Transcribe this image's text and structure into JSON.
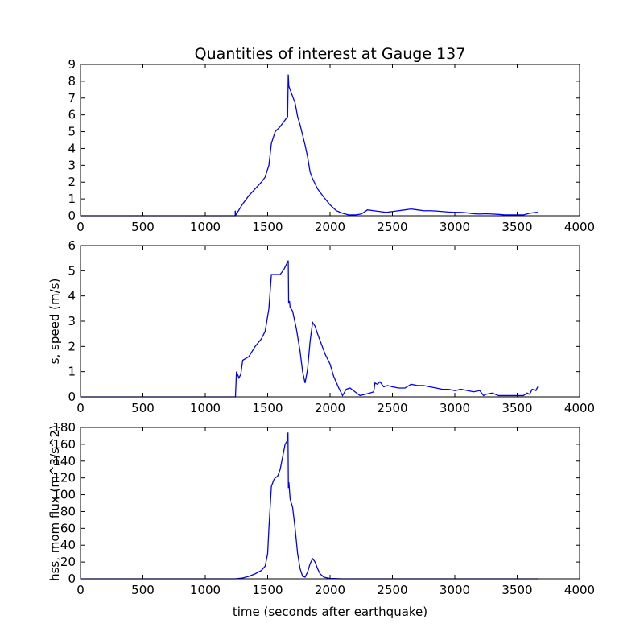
{
  "title": "Quantities of interest at Gauge 137",
  "xlabel": "time (seconds after earthquake)",
  "line_color": "#0000ff",
  "chart_data": [
    {
      "type": "line",
      "title": "Quantities of interest at Gauge 137",
      "ylabel": "",
      "xlabel": "",
      "xlim": [
        0,
        4000
      ],
      "ylim": [
        0,
        9
      ],
      "xticks": [
        0,
        500,
        1000,
        1500,
        2000,
        2500,
        3000,
        3500,
        4000
      ],
      "yticks": [
        0,
        1,
        2,
        3,
        4,
        5,
        6,
        7,
        8,
        9
      ],
      "series": [
        {
          "x": [
            0,
            1240,
            1240,
            1245,
            1300,
            1350,
            1400,
            1450,
            1480,
            1510,
            1530,
            1560,
            1600,
            1630,
            1660,
            1665,
            1670,
            1680,
            1700,
            1720,
            1740,
            1760,
            1780,
            1800,
            1820,
            1840,
            1860,
            1900,
            1950,
            2000,
            2050,
            2100,
            2150,
            2200,
            2250,
            2300,
            2350,
            2400,
            2450,
            2500,
            2550,
            2600,
            2650,
            2700,
            2750,
            2800,
            2850,
            2900,
            2950,
            3000,
            3050,
            3100,
            3150,
            3200,
            3250,
            3300,
            3350,
            3400,
            3450,
            3500,
            3550,
            3600,
            3650,
            3665
          ],
          "y": [
            0,
            0,
            0.3,
            0.05,
            0.7,
            1.2,
            1.6,
            2.0,
            2.3,
            3.0,
            4.3,
            5.0,
            5.3,
            5.6,
            5.9,
            8.4,
            7.7,
            7.5,
            7.1,
            6.7,
            5.9,
            5.4,
            4.8,
            4.2,
            3.5,
            2.6,
            2.2,
            1.6,
            1.1,
            0.65,
            0.3,
            0.15,
            0.05,
            0.05,
            0.1,
            0.35,
            0.3,
            0.25,
            0.2,
            0.25,
            0.3,
            0.35,
            0.4,
            0.35,
            0.3,
            0.3,
            0.28,
            0.25,
            0.22,
            0.2,
            0.2,
            0.17,
            0.12,
            0.1,
            0.12,
            0.1,
            0.08,
            0.05,
            0.05,
            0.05,
            0.05,
            0.15,
            0.2,
            0.2
          ]
        }
      ]
    },
    {
      "type": "line",
      "title": "",
      "ylabel": "s, speed (m/s)",
      "xlabel": "",
      "xlim": [
        0,
        4000
      ],
      "ylim": [
        0,
        6
      ],
      "xticks": [
        0,
        500,
        1000,
        1500,
        2000,
        2500,
        3000,
        3500,
        4000
      ],
      "yticks": [
        0,
        1,
        2,
        3,
        4,
        5,
        6
      ],
      "series": [
        {
          "x": [
            0,
            1240,
            1242,
            1250,
            1270,
            1285,
            1300,
            1350,
            1400,
            1450,
            1480,
            1510,
            1530,
            1560,
            1600,
            1630,
            1665,
            1668,
            1675,
            1680,
            1700,
            1730,
            1760,
            1780,
            1800,
            1820,
            1840,
            1860,
            1880,
            1900,
            1930,
            1960,
            2000,
            2030,
            2070,
            2100,
            2130,
            2160,
            2200,
            2240,
            2280,
            2320,
            2350,
            2360,
            2380,
            2400,
            2430,
            2460,
            2500,
            2550,
            2600,
            2650,
            2700,
            2750,
            2800,
            2850,
            2900,
            2950,
            3000,
            3050,
            3100,
            3150,
            3200,
            3230,
            3250,
            3300,
            3350,
            3400,
            3450,
            3500,
            3550,
            3580,
            3600,
            3620,
            3650,
            3665
          ],
          "y": [
            0,
            0,
            0,
            1.0,
            0.75,
            0.9,
            1.45,
            1.6,
            2.0,
            2.3,
            2.6,
            3.5,
            4.85,
            4.85,
            4.85,
            5.05,
            5.4,
            3.7,
            3.8,
            3.55,
            3.4,
            2.7,
            1.8,
            1.0,
            0.55,
            1.1,
            2.2,
            2.95,
            2.8,
            2.5,
            2.1,
            1.7,
            1.3,
            0.8,
            0.35,
            0.05,
            0.3,
            0.35,
            0.2,
            0.05,
            0.1,
            0.15,
            0.2,
            0.55,
            0.5,
            0.6,
            0.4,
            0.45,
            0.4,
            0.35,
            0.35,
            0.5,
            0.45,
            0.45,
            0.4,
            0.35,
            0.3,
            0.3,
            0.25,
            0.3,
            0.25,
            0.2,
            0.25,
            0.05,
            0.1,
            0.15,
            0.05,
            0.05,
            0.05,
            0.05,
            0.05,
            0.15,
            0.1,
            0.3,
            0.25,
            0.4
          ]
        }
      ]
    },
    {
      "type": "line",
      "title": "",
      "ylabel": "hss, mom flux (m^3/s^2)",
      "xlabel": "time (seconds after earthquake)",
      "xlim": [
        0,
        4000
      ],
      "ylim": [
        0,
        180
      ],
      "xticks": [
        0,
        500,
        1000,
        1500,
        2000,
        2500,
        3000,
        3500,
        4000
      ],
      "yticks": [
        0,
        20,
        40,
        60,
        80,
        100,
        120,
        140,
        160,
        180
      ],
      "series": [
        {
          "x": [
            0,
            1240,
            1300,
            1350,
            1400,
            1450,
            1480,
            1500,
            1510,
            1530,
            1550,
            1560,
            1580,
            1600,
            1620,
            1640,
            1660,
            1663,
            1666,
            1670,
            1680,
            1700,
            1720,
            1740,
            1760,
            1780,
            1800,
            1820,
            1840,
            1860,
            1880,
            1900,
            1920,
            1950,
            1980,
            2000,
            2050,
            2100,
            2500,
            3000,
            3500,
            3665
          ],
          "y": [
            0,
            0,
            1,
            3,
            6,
            10,
            15,
            30,
            60,
            110,
            118,
            120,
            122,
            130,
            145,
            160,
            165,
            174,
            108,
            115,
            95,
            85,
            60,
            30,
            12,
            3,
            2,
            8,
            18,
            24,
            20,
            12,
            6,
            2,
            1,
            0.5,
            0.2,
            0,
            0,
            0,
            0,
            0
          ]
        }
      ]
    }
  ]
}
